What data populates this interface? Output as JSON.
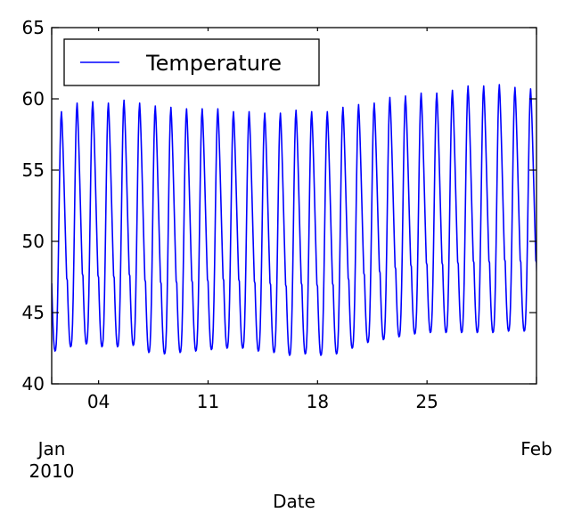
{
  "chart_data": {
    "type": "line",
    "title": "",
    "xlabel": "Date",
    "ylabel": "",
    "xlim": [
      "2010-01-01",
      "2010-02-01"
    ],
    "ylim": [
      40,
      65
    ],
    "grid": false,
    "legend": {
      "placement": "top-left"
    },
    "x_ticks": {
      "major": [
        {
          "value": "2010-01-01",
          "label": "Jan",
          "sublabel": "2010"
        },
        {
          "value": "2010-02-01",
          "label": "Feb",
          "sublabel": ""
        }
      ],
      "minor": [
        {
          "value": "2010-01-04",
          "label": "04"
        },
        {
          "value": "2010-01-11",
          "label": "11"
        },
        {
          "value": "2010-01-18",
          "label": "18"
        },
        {
          "value": "2010-01-25",
          "label": "25"
        }
      ]
    },
    "y_ticks": [
      {
        "value": 40,
        "label": "40"
      },
      {
        "value": 45,
        "label": "45"
      },
      {
        "value": 50,
        "label": "50"
      },
      {
        "value": 55,
        "label": "55"
      },
      {
        "value": 60,
        "label": "60"
      },
      {
        "value": 65,
        "label": "65"
      }
    ],
    "series": [
      {
        "name": "Temperature",
        "color": "#0000ff",
        "resolution": "hourly",
        "daily": [
          {
            "date": "2010-01-01",
            "min": 42.3,
            "max": 59.1
          },
          {
            "date": "2010-01-02",
            "min": 42.6,
            "max": 59.7
          },
          {
            "date": "2010-01-03",
            "min": 42.8,
            "max": 59.8
          },
          {
            "date": "2010-01-04",
            "min": 42.6,
            "max": 59.7
          },
          {
            "date": "2010-01-05",
            "min": 42.6,
            "max": 59.9
          },
          {
            "date": "2010-01-06",
            "min": 42.7,
            "max": 59.7
          },
          {
            "date": "2010-01-07",
            "min": 42.2,
            "max": 59.5
          },
          {
            "date": "2010-01-08",
            "min": 42.1,
            "max": 59.4
          },
          {
            "date": "2010-01-09",
            "min": 42.2,
            "max": 59.3
          },
          {
            "date": "2010-01-10",
            "min": 42.3,
            "max": 59.3
          },
          {
            "date": "2010-01-11",
            "min": 42.4,
            "max": 59.3
          },
          {
            "date": "2010-01-12",
            "min": 42.5,
            "max": 59.1
          },
          {
            "date": "2010-01-13",
            "min": 42.5,
            "max": 59.1
          },
          {
            "date": "2010-01-14",
            "min": 42.3,
            "max": 59.0
          },
          {
            "date": "2010-01-15",
            "min": 42.2,
            "max": 59.0
          },
          {
            "date": "2010-01-16",
            "min": 42.0,
            "max": 59.2
          },
          {
            "date": "2010-01-17",
            "min": 42.1,
            "max": 59.1
          },
          {
            "date": "2010-01-18",
            "min": 42.0,
            "max": 59.1
          },
          {
            "date": "2010-01-19",
            "min": 42.1,
            "max": 59.4
          },
          {
            "date": "2010-01-20",
            "min": 42.5,
            "max": 59.6
          },
          {
            "date": "2010-01-21",
            "min": 42.9,
            "max": 59.7
          },
          {
            "date": "2010-01-22",
            "min": 43.1,
            "max": 60.1
          },
          {
            "date": "2010-01-23",
            "min": 43.3,
            "max": 60.2
          },
          {
            "date": "2010-01-24",
            "min": 43.5,
            "max": 60.4
          },
          {
            "date": "2010-01-25",
            "min": 43.6,
            "max": 60.4
          },
          {
            "date": "2010-01-26",
            "min": 43.6,
            "max": 60.6
          },
          {
            "date": "2010-01-27",
            "min": 43.6,
            "max": 60.9
          },
          {
            "date": "2010-01-28",
            "min": 43.6,
            "max": 60.9
          },
          {
            "date": "2010-01-29",
            "min": 43.6,
            "max": 61.0
          },
          {
            "date": "2010-01-30",
            "min": 43.7,
            "max": 60.8
          },
          {
            "date": "2010-01-31",
            "min": 43.7,
            "max": 60.7
          },
          {
            "date": "2010-02-01",
            "min": 43.7,
            "max": 60.9
          }
        ]
      }
    ]
  }
}
